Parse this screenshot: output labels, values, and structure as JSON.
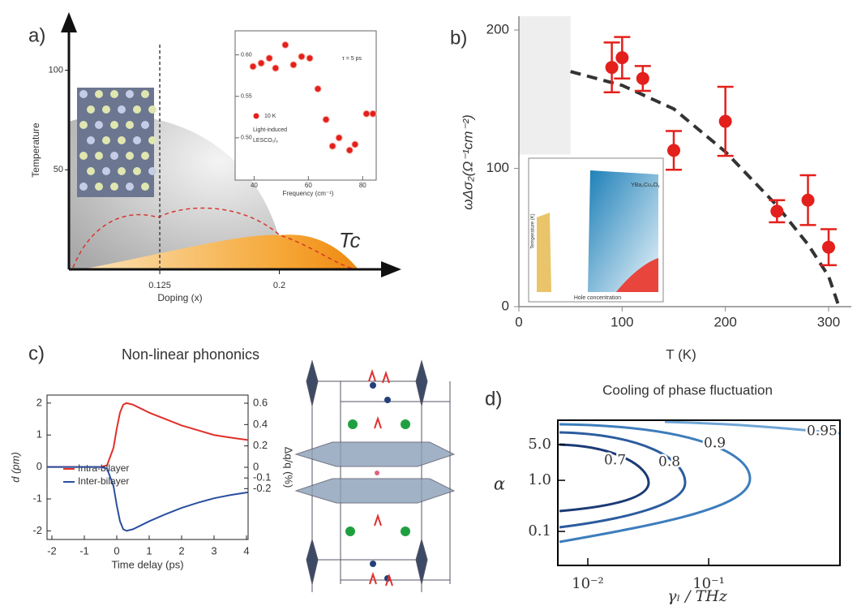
{
  "chart_data": [
    {
      "type": "phase_diagram",
      "panel_label": "a)",
      "xlabel": "Doping (x)",
      "ylabel": "Temperature",
      "annotation": "Tc",
      "xlim": [
        0.068,
        0.274
      ],
      "ylim": [
        0,
        119
      ],
      "xticks": [
        0.125,
        0.2
      ],
      "yticks": [
        50,
        100
      ],
      "inset": {
        "type": "scatter",
        "xlabel": "Frequency (cm⁻¹)",
        "legend": "10 K",
        "annotations": [
          "τ = 5 ps",
          "Light-induced",
          "LESCO₁/₈"
        ],
        "color": "#e3201b",
        "xlim": [
          33,
          85
        ],
        "ylim": [
          0.449,
          0.629
        ],
        "xticks": [
          40,
          60,
          80
        ],
        "yticks": [
          {
            "value": 0.6,
            "label": "0.60"
          },
          {
            "value": 0.55,
            "label": "0.55"
          },
          {
            "value": 0.5,
            "label": "0.50"
          }
        ],
        "x": [
          39.6,
          42.6,
          45.6,
          47.9,
          51.5,
          54.5,
          57.5,
          60.5,
          63.5,
          66.5,
          68.9,
          71.3,
          75.2,
          77.2,
          81.4,
          83.8
        ],
        "values": [
          0.586,
          0.59,
          0.596,
          0.584,
          0.612,
          0.588,
          0.598,
          0.596,
          0.559,
          0.522,
          0.49,
          0.5,
          0.485,
          0.492,
          0.529,
          0.529
        ]
      }
    },
    {
      "type": "scatter",
      "panel_label": "b)",
      "xlabel": "T (K)",
      "ylabel": "ωΔσ₂(Ω⁻¹cm⁻²)",
      "color": "#e3201b",
      "xlim": [
        0,
        322
      ],
      "ylim": [
        0,
        210
      ],
      "xticks": [
        0,
        100,
        200,
        300
      ],
      "yticks": [
        0,
        100,
        200
      ],
      "x": [
        90,
        100,
        120,
        150,
        200,
        250,
        280,
        300
      ],
      "values": [
        173,
        180,
        165,
        113,
        134,
        69,
        77,
        43
      ],
      "errors": [
        18,
        15,
        9,
        14,
        25,
        8,
        18,
        13
      ],
      "fit": {
        "x": [
          50,
          100,
          150,
          200,
          250,
          280,
          300,
          310
        ],
        "values": [
          170,
          160,
          143,
          112,
          73,
          45,
          22,
          0
        ]
      },
      "shaded_region": {
        "x": [
          0,
          50
        ],
        "y": [
          110,
          210
        ]
      },
      "inset": {
        "xlabel": "Hole concentration",
        "ylabel": "Temperature (K)",
        "annotation": "YBa₂Cu₃Oᵧ"
      }
    },
    {
      "type": "line",
      "panel_label": "c)",
      "title": "Non-linear phononics",
      "xlabel": "Time delay (ps)",
      "ylabel": "d (pm)",
      "y2label": "Δq/q (%)",
      "xlim": [
        -2.15,
        4.05
      ],
      "ylim": [
        -2.27,
        2.25
      ],
      "y2lim": [
        -0.676,
        0.676
      ],
      "xticks": [
        -2,
        -1,
        0,
        1,
        2,
        3,
        4
      ],
      "yticks": [
        -2,
        -1,
        0,
        1,
        2
      ],
      "y2ticks": [
        0.6,
        0.4,
        0.2,
        0,
        -0.1,
        -0.2
      ],
      "x": [
        -2.15,
        -1,
        -0.5,
        -0.3,
        -0.1,
        0,
        0.1,
        0.2,
        0.3,
        0.5,
        1,
        1.5,
        2,
        2.5,
        3,
        3.5,
        4,
        4.05
      ],
      "series": [
        {
          "name": "Intra-bilayer",
          "color": "#e0302a",
          "values": [
            0,
            0,
            0,
            0.05,
            0.6,
            1.2,
            1.7,
            1.95,
            2.0,
            1.95,
            1.7,
            1.5,
            1.3,
            1.15,
            1.0,
            0.92,
            0.85,
            0.84
          ]
        },
        {
          "name": "Inter-bilayer",
          "color": "#2a4f9e",
          "values": [
            0,
            0,
            0,
            -0.05,
            -0.6,
            -1.2,
            -1.7,
            -1.95,
            -2.0,
            -1.95,
            -1.7,
            -1.48,
            -1.28,
            -1.12,
            -0.98,
            -0.88,
            -0.8,
            -0.79
          ]
        }
      ]
    },
    {
      "type": "contour",
      "panel_label": "d)",
      "title": "Cooling of phase fluctuation",
      "xlabel": "γₗ / THz",
      "ylabel": "α",
      "xscale": "log",
      "yscale": "log",
      "xlim": [
        0.00565,
        1.22
      ],
      "ylim": [
        0.0216,
        15
      ],
      "xticks": [
        {
          "value": 0.01,
          "label": "10⁻²"
        },
        {
          "value": 0.1,
          "label": "10⁻¹"
        }
      ],
      "yticks": [
        {
          "value": 5,
          "label": "5.0"
        },
        {
          "value": 1,
          "label": "1.0"
        },
        0.1
      ],
      "levels": [
        0.7,
        0.8,
        0.9,
        0.95
      ],
      "colors": [
        "#1b3a75",
        "#2b5c9e",
        "#3d7dbd",
        "#6ea5d5"
      ]
    }
  ]
}
